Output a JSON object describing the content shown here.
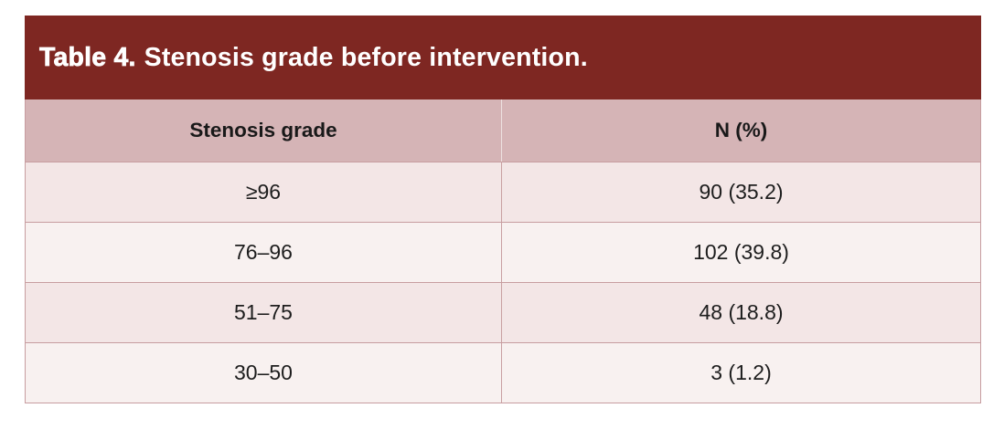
{
  "table": {
    "title_label": "Table 4.",
    "title_text": "Stenosis grade before intervention.",
    "columns": {
      "grade": "Stenosis grade",
      "n_pct": "N (%)"
    },
    "rows": [
      {
        "grade": "≥96",
        "n_pct": "90 (35.2)"
      },
      {
        "grade": "76–96",
        "n_pct": "102 (39.8)"
      },
      {
        "grade": "51–75",
        "n_pct": "48 (18.8)"
      },
      {
        "grade": "30–50",
        "n_pct": "3 (1.2)"
      }
    ],
    "colors": {
      "title_bar_bg": "#7e2722",
      "title_text": "#ffffff",
      "header_bg": "#d5b4b6",
      "row_odd_bg": "#f3e6e6",
      "row_even_bg": "#f8f1f0",
      "border": "#c79da0",
      "header_divider": "#eee1e1",
      "cell_text": "#1d1d1d"
    }
  },
  "chart_data": {
    "type": "table",
    "title": "Table 4. Stenosis grade before intervention.",
    "columns": [
      "Stenosis grade",
      "N (%)"
    ],
    "rows": [
      [
        "≥96",
        "90 (35.2)"
      ],
      [
        "76–96",
        "102 (39.8)"
      ],
      [
        "51–75",
        "48 (18.8)"
      ],
      [
        "30–50",
        "3 (1.2)"
      ]
    ]
  }
}
